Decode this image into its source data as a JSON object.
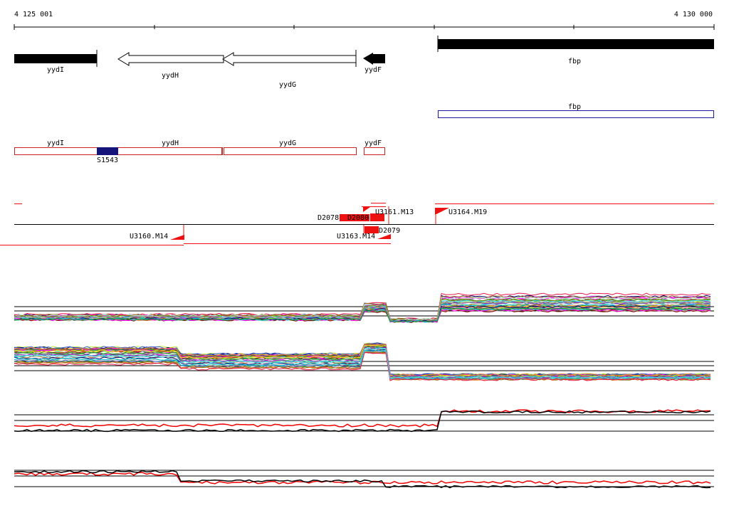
{
  "ruler": {
    "start_label": "4 125 001",
    "end_label": "4 130 000"
  },
  "genes": [
    {
      "id": "gene-yydI",
      "label": "yydI",
      "style": "filled-bar"
    },
    {
      "id": "gene-yydH",
      "label": "yydH",
      "style": "open-arrow-left"
    },
    {
      "id": "gene-yydG",
      "label": "yydG",
      "style": "open-arrow-left"
    },
    {
      "id": "gene-yydF",
      "label": "yydF",
      "style": "filled-arrow-left"
    },
    {
      "id": "gene-fbp",
      "label": "fbp",
      "style": "filled-bar"
    }
  ],
  "operon": {
    "label": "fbp",
    "color": "#1a1aa0"
  },
  "gene_boxes": {
    "color": "#cc2222",
    "items": [
      "yydI",
      "yydH",
      "yydG",
      "yydF"
    ]
  },
  "feature": {
    "label": "S1543",
    "color": "#14147a"
  },
  "transcripts": {
    "color": "#ee1111",
    "labels": [
      "D2078",
      "D2080",
      "U3161.M13",
      "D2079",
      "U3164.M19",
      "U3160.M14",
      "U3163.M14"
    ]
  },
  "expression_colors": [
    "#e6194b",
    "#3cb44b",
    "#ffe119",
    "#4363d8",
    "#f58231",
    "#911eb4",
    "#42d4f4",
    "#f032e6",
    "#bfef45",
    "#fabebe",
    "#469990",
    "#9a6324",
    "#800000",
    "#aaffc3",
    "#808000",
    "#000075",
    "#a9a9a9",
    "#ff00ff",
    "#00ced1",
    "#228b22"
  ],
  "highlight_colors": {
    "red": "#ee0000",
    "black": "#000000"
  }
}
